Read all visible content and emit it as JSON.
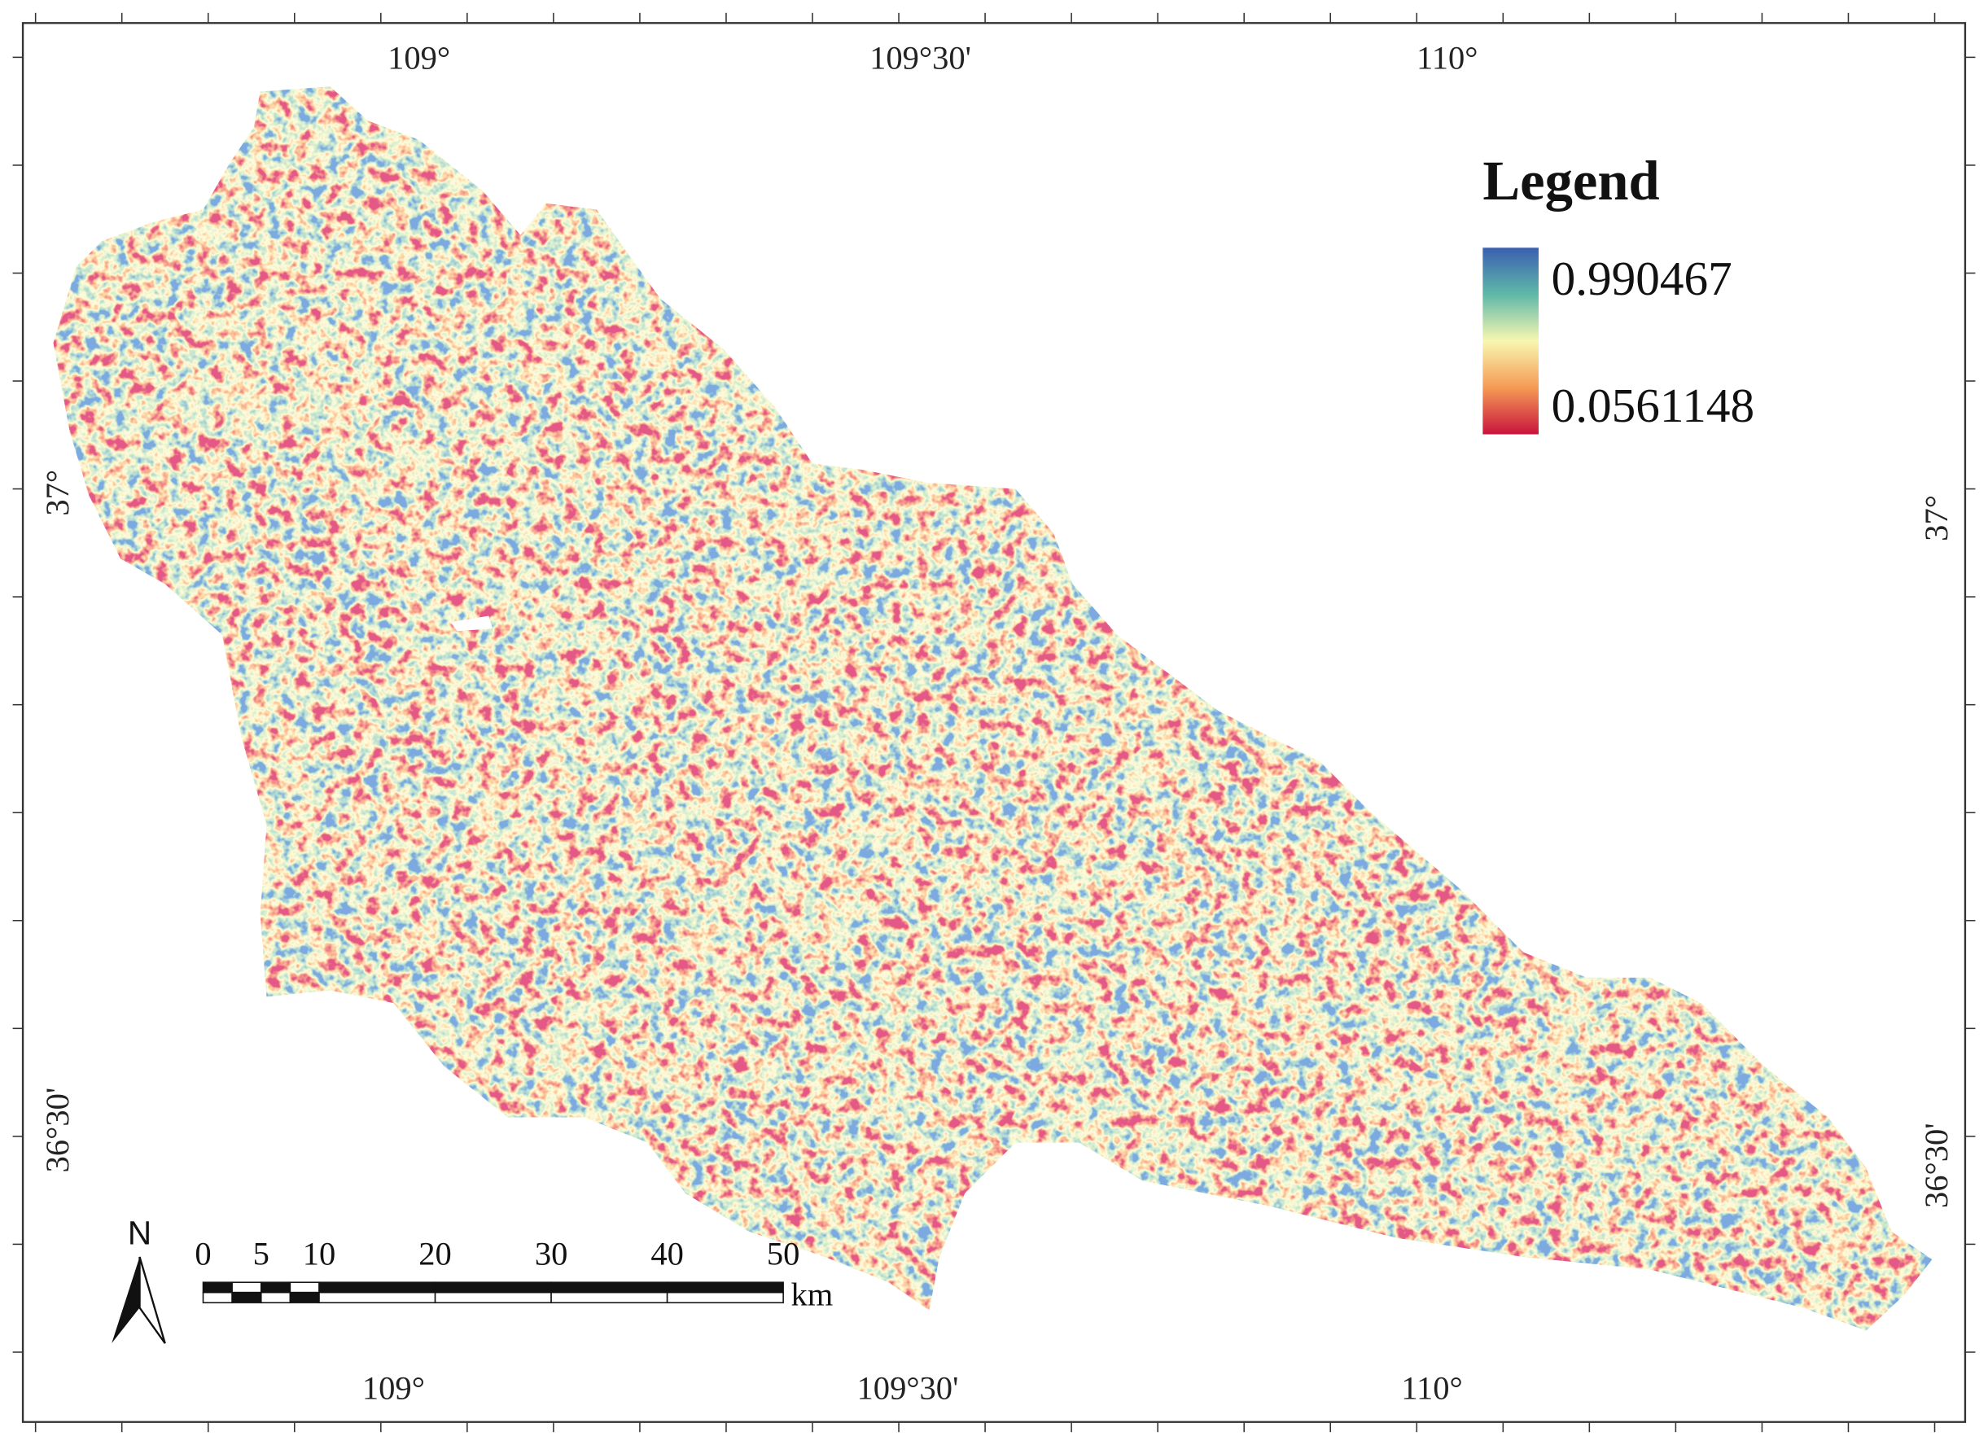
{
  "map": {
    "top_labels": [
      "109°",
      "109°30'",
      "110°"
    ],
    "bottom_labels": [
      "109°",
      "109°30'",
      "110°"
    ],
    "left_labels": [
      "37°",
      "36°30'"
    ],
    "right_labels": [
      "37°",
      "36°30'"
    ]
  },
  "legend": {
    "title": "Legend",
    "max": 0.990467,
    "min": 0.0561148
  },
  "north_arrow": {
    "label": "N"
  },
  "scale_bar": {
    "ticks": [
      0,
      5,
      10,
      20,
      30,
      40,
      50
    ],
    "unit": "km"
  }
}
